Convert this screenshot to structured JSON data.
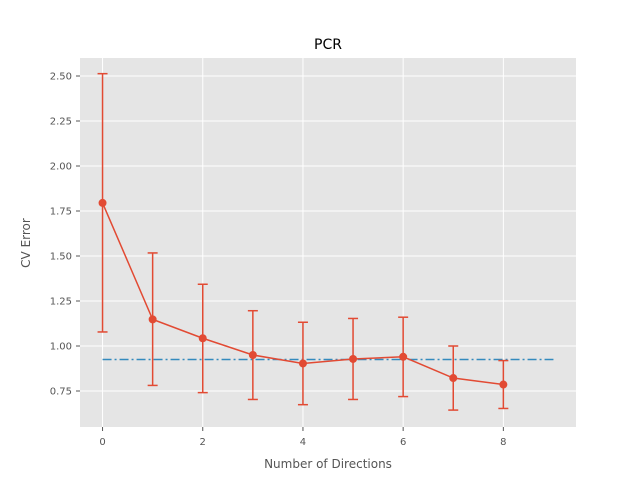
{
  "chart_data": {
    "type": "line",
    "title": "PCR",
    "xlabel": "Number of Directions",
    "ylabel": "CV Error",
    "xlim": [
      -0.45,
      9.45
    ],
    "ylim": [
      0.55,
      2.6
    ],
    "xticks": [
      0,
      2,
      4,
      6,
      8
    ],
    "xtick_labels": [
      "0",
      "2",
      "4",
      "6",
      "8"
    ],
    "yticks": [
      0.75,
      1.0,
      1.25,
      1.5,
      1.75,
      2.0,
      2.25,
      2.5
    ],
    "ytick_labels": [
      "0.75",
      "1.00",
      "1.25",
      "1.50",
      "1.75",
      "2.00",
      "2.25",
      "2.50"
    ],
    "grid": true,
    "background": "#e5e5e5",
    "series": [
      {
        "kind": "errorbar-line",
        "color": "#e24a33",
        "x": [
          0,
          1,
          2,
          3,
          4,
          5,
          6,
          7,
          8
        ],
        "y": [
          1.795,
          1.148,
          1.043,
          0.95,
          0.903,
          0.928,
          0.94,
          0.822,
          0.786
        ],
        "yerr_low": [
          1.078,
          0.781,
          0.741,
          0.703,
          0.674,
          0.703,
          0.719,
          0.644,
          0.653
        ],
        "yerr_high": [
          2.513,
          1.517,
          1.343,
          1.196,
          1.132,
          1.153,
          1.16,
          1.0,
          0.919
        ]
      },
      {
        "kind": "reference-line",
        "style": "dash-dot",
        "color": "#348abd",
        "x": [
          0,
          9
        ],
        "y": [
          0.925,
          0.925
        ]
      }
    ]
  }
}
